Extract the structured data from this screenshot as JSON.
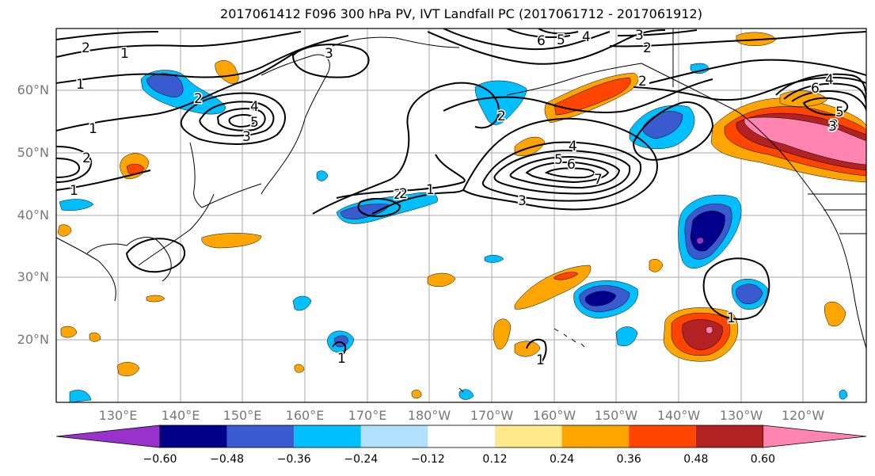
{
  "title": "2017061412 F096 300 hPa PV, IVT Landfall PC (2017061712 - 2017061912)",
  "lat_labels": [
    "60°N",
    "50°N",
    "40°N",
    "30°N",
    "20°N"
  ],
  "lon_labels": [
    "130°E",
    "140°E",
    "150°E",
    "160°E",
    "170°E",
    "180°W",
    "170°W",
    "160°W",
    "150°W",
    "140°W",
    "130°W",
    "120°W"
  ],
  "colorbar": {
    "ticks": [
      "−0.60",
      "−0.48",
      "−0.36",
      "−0.24",
      "−0.12",
      "0.12",
      "0.24",
      "0.36",
      "0.48",
      "0.60"
    ],
    "colors": [
      "#9932cc",
      "#00008b",
      "#3a5bcf",
      "#00bfff",
      "#b0e2ff",
      "#ffffff",
      "#ffe98a",
      "#ffa500",
      "#ff4500",
      "#b22222",
      "#ff85b0"
    ]
  },
  "contour_labels": [
    "2",
    "1",
    "1",
    "1",
    "2",
    "1",
    "3",
    "2",
    "4",
    "5",
    "3",
    "2",
    "3",
    "3",
    "2",
    "6",
    "5",
    "4",
    "2",
    "2",
    "2",
    "1",
    "4",
    "5",
    "6",
    "7",
    "3",
    "1",
    "1",
    "1",
    "6",
    "4",
    "5",
    "3"
  ]
}
